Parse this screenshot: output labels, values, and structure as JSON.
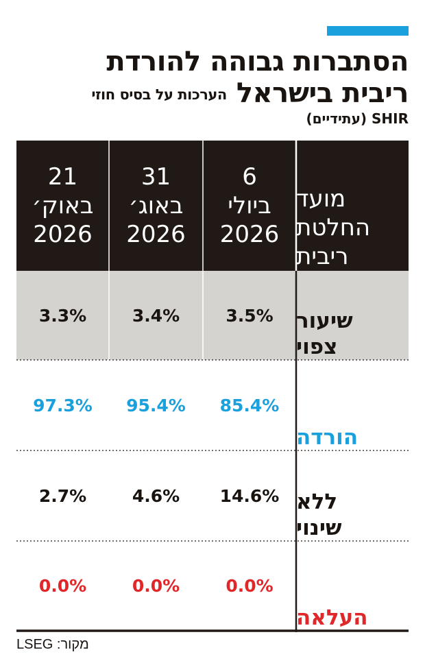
{
  "header": {
    "title_line1": "הסתברות גבוהה להורדת",
    "title_line2": "ריבית בישראל",
    "subtitle": "הערכות על בסיס חוזי",
    "subtitle_line2": "SHIR (עתידיים)"
  },
  "colors": {
    "accent": "#1aa0dc",
    "header_bg": "#211916",
    "highlight_bg": "#d5d3d0",
    "cut": "#1aa0dc",
    "hike": "#e0282b",
    "text": "#1a1411"
  },
  "chart_data": {
    "type": "table",
    "columns": [
      {
        "label": "מועד\nהחלטת\nריבית"
      },
      {
        "label": "6\nביולי\n2026"
      },
      {
        "label": "31\nבאוג׳\n2026"
      },
      {
        "label": "21\nבאוק׳\n2026"
      }
    ],
    "rows": [
      {
        "label": "שיעור\nצפוי",
        "values": [
          "3.5%",
          "3.4%",
          "3.3%"
        ],
        "style": "highlight"
      },
      {
        "label": "הורדה",
        "values": [
          "85.4%",
          "95.4%",
          "97.3%"
        ],
        "style": "cut"
      },
      {
        "label": "ללא\nשינוי",
        "values": [
          "14.6%",
          "4.6%",
          "2.7%"
        ],
        "style": "normal"
      },
      {
        "label": "העלאה",
        "values": [
          "0.0%",
          "0.0%",
          "0.0%"
        ],
        "style": "hike"
      }
    ]
  },
  "footer": {
    "source": "מקור: LSEG"
  }
}
